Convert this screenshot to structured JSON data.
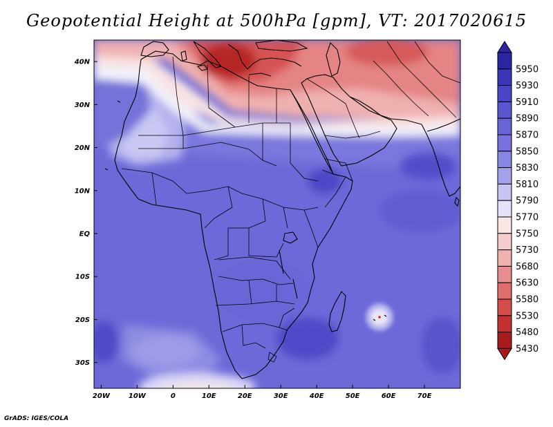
{
  "title": "Geopotential Height at 500hPa [gpm], VT: 2017020615",
  "credit": "GrADS: IGES/COLA",
  "map": {
    "region": "Africa, Mediterranean, Middle East and western Indian Ocean",
    "lon_range": [
      -22,
      80
    ],
    "lat_range": [
      -36,
      45
    ],
    "lon_ticks": [
      "20W",
      "10W",
      "0",
      "10E",
      "20E",
      "30E",
      "40E",
      "50E",
      "60E",
      "70E"
    ],
    "lat_ticks": [
      "40N",
      "30N",
      "20N",
      "10N",
      "EQ",
      "10S",
      "20S",
      "30S"
    ],
    "field": "500hPa geopotential height",
    "units": "gpm"
  },
  "colorbar": {
    "levels": [
      "5950",
      "5930",
      "5910",
      "5890",
      "5870",
      "5850",
      "5830",
      "5810",
      "5790",
      "5770",
      "5750",
      "5730",
      "5680",
      "5630",
      "5580",
      "5530",
      "5480",
      "5430"
    ],
    "colors": [
      "#2c25a4",
      "#3a34b9",
      "#4a44c6",
      "#5a56cf",
      "#6864d6",
      "#7671dc",
      "#8886e3",
      "#a5a2ea",
      "#c7c6f2",
      "#e4e3f9",
      "#f8e7e5",
      "#f5cccc",
      "#f0b1b1",
      "#e88e8e",
      "#e06d6d",
      "#d44c4c",
      "#c33131",
      "#a71b1b"
    ],
    "bottom_color": "#a71b1b",
    "top_color": "#2c25a4"
  }
}
